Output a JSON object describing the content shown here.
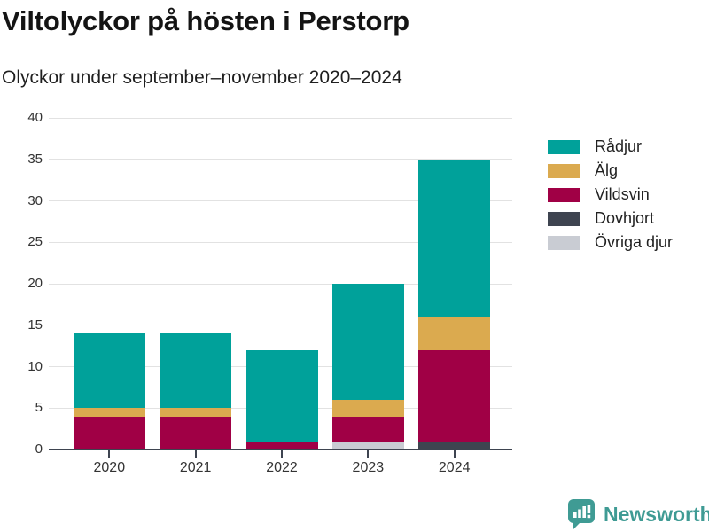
{
  "header": {
    "title": "Viltolyckor på hösten i Perstorp",
    "subtitle": "Olyckor under september–november 2020–2024"
  },
  "chart_data": {
    "type": "bar",
    "stacked": true,
    "title": "Viltolyckor på hösten i Perstorp",
    "subtitle": "Olyckor under september–november 2020–2024",
    "categories": [
      "2020",
      "2021",
      "2022",
      "2023",
      "2024"
    ],
    "series": [
      {
        "name": "Rådjur",
        "color": "#00a19a",
        "values": [
          9,
          9,
          11,
          14,
          19
        ]
      },
      {
        "name": "Älg",
        "color": "#dbaa4f",
        "values": [
          1,
          1,
          0,
          2,
          4
        ]
      },
      {
        "name": "Vildsvin",
        "color": "#a00045",
        "values": [
          4,
          4,
          1,
          3,
          11
        ]
      },
      {
        "name": "Dovhjort",
        "color": "#3e4450",
        "values": [
          0,
          0,
          0,
          0,
          1
        ]
      },
      {
        "name": "Övriga djur",
        "color": "#c9ccd3",
        "values": [
          0,
          0,
          0,
          1,
          0
        ]
      }
    ],
    "totals": [
      14,
      14,
      12,
      20,
      35
    ],
    "stack_order_bottom_to_top": [
      "Övriga djur",
      "Dovhjort",
      "Vildsvin",
      "Älg",
      "Rådjur"
    ],
    "xlabel": "",
    "ylabel": "",
    "ylim": [
      0,
      40
    ],
    "yticks": [
      0,
      5,
      10,
      15,
      20,
      25,
      30,
      35,
      40
    ],
    "grid": true,
    "legend_position": "right",
    "axis_color": "#3e4450",
    "grid_color": "#e2e2e2",
    "tick_label_color": "#333333"
  },
  "branding": {
    "logo_text": "Newsworthy",
    "logo_color": "#3f9b94",
    "logo_icon": "speech-bubble-bar-chart-icon"
  }
}
